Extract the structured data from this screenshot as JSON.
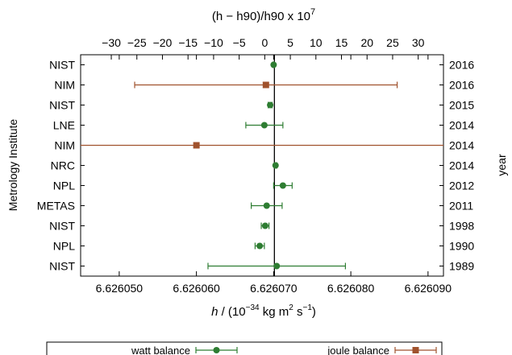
{
  "chart_data": {
    "type": "scatter",
    "title_top_axis": "(h − h90)/h90 x 10",
    "title_top_axis_exp": "7",
    "xlabel_parts": {
      "h": "h",
      "rest1": " / (10",
      "exp1": "−34",
      "rest2": " kg m",
      "exp2": "2",
      "rest3": " s",
      "exp3": "−1",
      "rest4": ")"
    },
    "ylabel_left": "Metrology Institute",
    "ylabel_right": "year",
    "xlim": [
      6.626045,
      6.626092
    ],
    "x_ticks": [
      "6.626050",
      "6.626060",
      "6.626070",
      "6.626080",
      "6.626090"
    ],
    "x_tick_values": [
      6.62605,
      6.62606,
      6.62607,
      6.62608,
      6.62609
    ],
    "top_ticks": [
      "−30",
      "−25",
      "−20",
      "−15",
      "−10",
      "−5",
      "0",
      "5",
      "10",
      "15",
      "20",
      "25",
      "30"
    ],
    "top_tick_values": [
      -30,
      -25,
      -20,
      -15,
      -10,
      -5,
      0,
      5,
      10,
      15,
      20,
      25,
      30
    ],
    "h90_value": 6.62606885,
    "reference_line_x": 6.6260701,
    "series_colors": {
      "watt": "#2e7d32",
      "joule": "#a0522d"
    },
    "rows": [
      {
        "institute": "NIST",
        "year": "2016",
        "value": 6.62607,
        "err_low": 6.6260699,
        "err_high": 6.6260701,
        "series": "watt"
      },
      {
        "institute": "NIM",
        "year": "2016",
        "value": 6.626069,
        "err_low": 6.626052,
        "err_high": 6.626086,
        "series": "joule"
      },
      {
        "institute": "NIST",
        "year": "2015",
        "value": 6.62606955,
        "err_low": 6.6260693,
        "err_high": 6.6260698,
        "series": "watt"
      },
      {
        "institute": "LNE",
        "year": "2014",
        "value": 6.6260688,
        "err_low": 6.6260664,
        "err_high": 6.6260712,
        "series": "watt"
      },
      {
        "institute": "NIM",
        "year": "2014",
        "value": 6.62606,
        "err_low": 6.62597,
        "err_high": 6.62617,
        "series": "joule"
      },
      {
        "institute": "NRC",
        "year": "2014",
        "value": 6.62607025,
        "err_low": 6.6260701,
        "err_high": 6.6260704,
        "series": "watt"
      },
      {
        "institute": "NPL",
        "year": "2012",
        "value": 6.6260712,
        "err_low": 6.62607,
        "err_high": 6.6260724,
        "series": "watt"
      },
      {
        "institute": "METAS",
        "year": "2011",
        "value": 6.6260691,
        "err_low": 6.6260671,
        "err_high": 6.6260711,
        "series": "watt"
      },
      {
        "institute": "NIST",
        "year": "1998",
        "value": 6.62606891,
        "err_low": 6.6260684,
        "err_high": 6.6260694,
        "series": "watt"
      },
      {
        "institute": "NPL",
        "year": "1990",
        "value": 6.6260682,
        "err_low": 6.6260676,
        "err_high": 6.6260688,
        "series": "watt"
      },
      {
        "institute": "NIST",
        "year": "1989",
        "value": 6.6260704,
        "err_low": 6.6260615,
        "err_high": 6.6260793,
        "series": "watt"
      }
    ],
    "legend": [
      {
        "label": "watt balance",
        "series": "watt"
      },
      {
        "label": "joule balance",
        "series": "joule"
      }
    ]
  }
}
